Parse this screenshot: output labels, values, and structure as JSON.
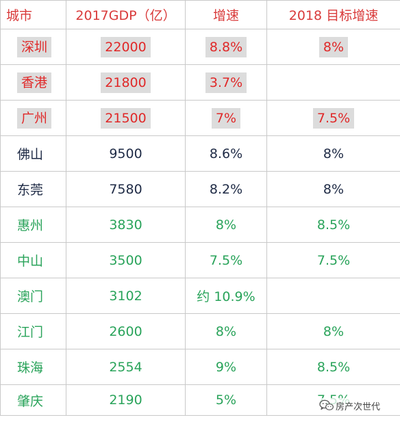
{
  "table": {
    "headers": [
      "城市",
      "2017GDP（亿）",
      "增速",
      "2018 目标增速"
    ],
    "rows": [
      {
        "city": "深圳",
        "gdp": "22000",
        "growth": "8.8%",
        "target": "8%"
      },
      {
        "city": "香港",
        "gdp": "21800",
        "growth": "3.7%",
        "target": ""
      },
      {
        "city": "广州",
        "gdp": "21500",
        "growth": "7%",
        "target": "7.5%"
      },
      {
        "city": "佛山",
        "gdp": "9500",
        "growth": "8.6%",
        "target": "8%"
      },
      {
        "city": "东莞",
        "gdp": "7580",
        "growth": "8.2%",
        "target": "8%"
      },
      {
        "city": "惠州",
        "gdp": "3830",
        "growth": "8%",
        "target": "8.5%"
      },
      {
        "city": "中山",
        "gdp": "3500",
        "growth": "7.5%",
        "target": "7.5%"
      },
      {
        "city": "澳门",
        "gdp": "3102",
        "growth": "约 10.9%",
        "target": ""
      },
      {
        "city": "江门",
        "gdp": "2600",
        "growth": "8%",
        "target": "8%"
      },
      {
        "city": "珠海",
        "gdp": "2554",
        "growth": "9%",
        "target": "8.5%"
      },
      {
        "city": "肇庆",
        "gdp": "2190",
        "growth": "5%",
        "target": "7.5%"
      }
    ]
  },
  "colors": {
    "header": "#d93a3a",
    "top_tier": "#e02828",
    "mid_tier": "#1e2a45",
    "lower_tier": "#29a35a",
    "highlight": "#dcdcdc",
    "border": "#c9c9c9"
  },
  "watermark": {
    "icon": "wechat-icon",
    "text": "房产次世代"
  }
}
